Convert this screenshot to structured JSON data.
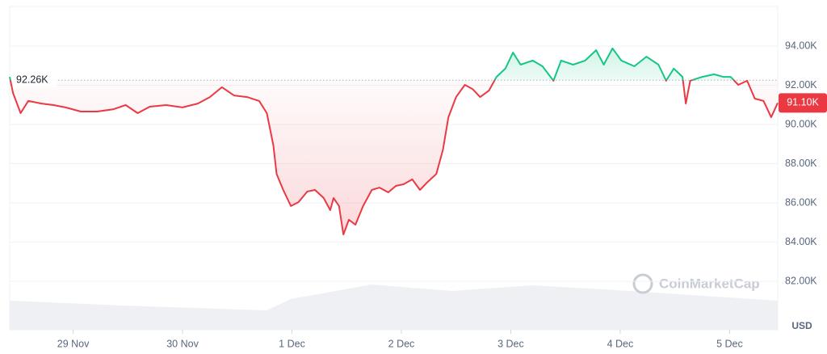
{
  "chart_data": {
    "type": "line",
    "x": [
      -0.58,
      -0.55,
      -0.48,
      -0.41,
      -0.29,
      -0.18,
      -0.07,
      0.07,
      0.22,
      0.37,
      0.48,
      0.59,
      0.7,
      0.85,
      1.0,
      1.14,
      1.25,
      1.36,
      1.47,
      1.59,
      1.7,
      1.77,
      1.83,
      1.86,
      1.92,
      1.99,
      2.06,
      2.14,
      2.21,
      2.29,
      2.35,
      2.38,
      2.43,
      2.47,
      2.52,
      2.58,
      2.65,
      2.73,
      2.8,
      2.88,
      2.95,
      3.02,
      3.1,
      3.17,
      3.24,
      3.32,
      3.38,
      3.43,
      3.5,
      3.58,
      3.65,
      3.72,
      3.8,
      3.87,
      3.95,
      4.02,
      4.09,
      4.2,
      4.29,
      4.39,
      4.46,
      4.57,
      4.68,
      4.78,
      4.85,
      4.93,
      5.01,
      5.13,
      5.24,
      5.35,
      5.42,
      5.49,
      5.57,
      5.6,
      5.64,
      5.75,
      5.86,
      5.94,
      6.01,
      6.08,
      6.16,
      6.23,
      6.31,
      6.38,
      6.44
    ],
    "values": [
      92430,
      91610,
      90580,
      91200,
      91070,
      90990,
      90870,
      90660,
      90660,
      90780,
      90990,
      90580,
      90910,
      90990,
      90870,
      91070,
      91400,
      91900,
      91480,
      91400,
      91200,
      90580,
      88930,
      87480,
      86660,
      85840,
      86040,
      86580,
      86660,
      86250,
      85630,
      86250,
      85840,
      84390,
      85140,
      84890,
      85840,
      86660,
      86780,
      86540,
      86870,
      86950,
      87200,
      86660,
      87070,
      87480,
      88720,
      90370,
      91400,
      92020,
      91810,
      91400,
      91730,
      92430,
      92850,
      93670,
      93050,
      93260,
      92970,
      92230,
      93260,
      93050,
      93260,
      93790,
      93050,
      93880,
      93260,
      92970,
      93460,
      93050,
      92230,
      92850,
      92430,
      91070,
      92230,
      92430,
      92560,
      92430,
      92430,
      92020,
      92230,
      91320,
      91200,
      90370,
      91100
    ],
    "colors": {
      "up": "#16c784",
      "down": "#ea3943"
    },
    "baseline": {
      "value": 92260,
      "label": "92.26K"
    },
    "last": {
      "value": 91100,
      "label": "91.10K"
    },
    "xlim": [
      -0.58,
      6.44
    ],
    "xticks": [
      {
        "value": 0,
        "label": "29 Nov"
      },
      {
        "value": 1,
        "label": "30 Nov"
      },
      {
        "value": 2,
        "label": "1 Dec"
      },
      {
        "value": 3,
        "label": "2 Dec"
      },
      {
        "value": 4,
        "label": "3 Dec"
      },
      {
        "value": 5,
        "label": "4 Dec"
      },
      {
        "value": 6,
        "label": "5 Dec"
      }
    ],
    "ylim": [
      79530,
      96020
    ],
    "yticks": [
      {
        "value": 82000,
        "label": "82.00K"
      },
      {
        "value": 84000,
        "label": "84.00K"
      },
      {
        "value": 86000,
        "label": "86.00K"
      },
      {
        "value": 88000,
        "label": "88.00K"
      },
      {
        "value": 90000,
        "label": "90.00K"
      },
      {
        "value": 92000,
        "label": "92.00K"
      },
      {
        "value": 94000,
        "label": "94.00K"
      }
    ],
    "y_unit": "USD",
    "grid": true,
    "watermark": "CoinMarketCap"
  }
}
